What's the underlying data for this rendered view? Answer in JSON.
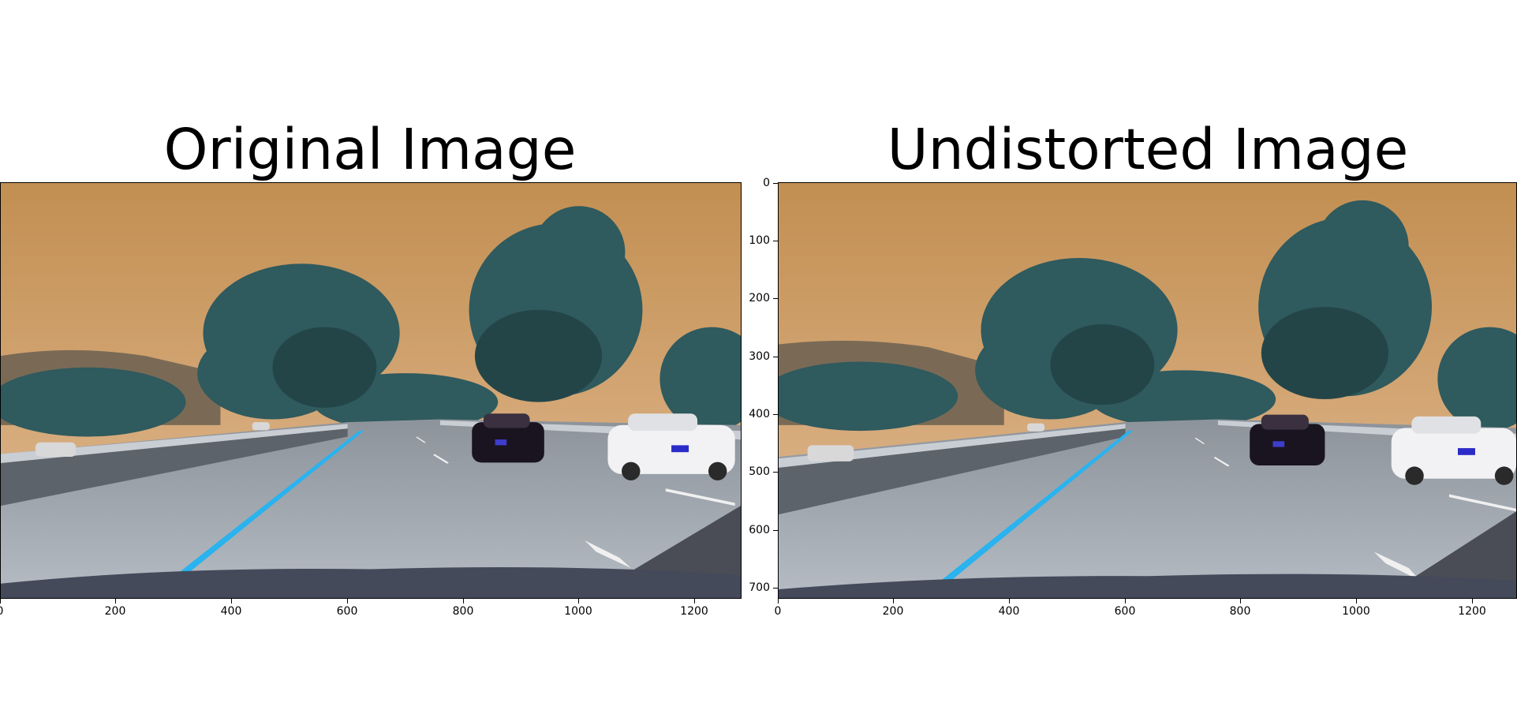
{
  "panels": [
    {
      "title": "Original Image",
      "x_ticks": [
        "0",
        "200",
        "400",
        "600",
        "800",
        "1000",
        "1200"
      ],
      "y_ticks": []
    },
    {
      "title": "Undistorted Image",
      "x_ticks": [
        "0",
        "200",
        "400",
        "600",
        "800",
        "1000",
        "1200"
      ],
      "y_ticks": [
        "0",
        "100",
        "200",
        "300",
        "400",
        "500",
        "600",
        "700"
      ]
    }
  ],
  "scene": {
    "sky_color": "#c8955a",
    "tree_color": "#2f5a5e",
    "road_color": "#9aa1a8",
    "lane_line_color": "#29b3ef",
    "car_dark_color": "#1a1420",
    "car_white_color": "#f2f2f4"
  }
}
